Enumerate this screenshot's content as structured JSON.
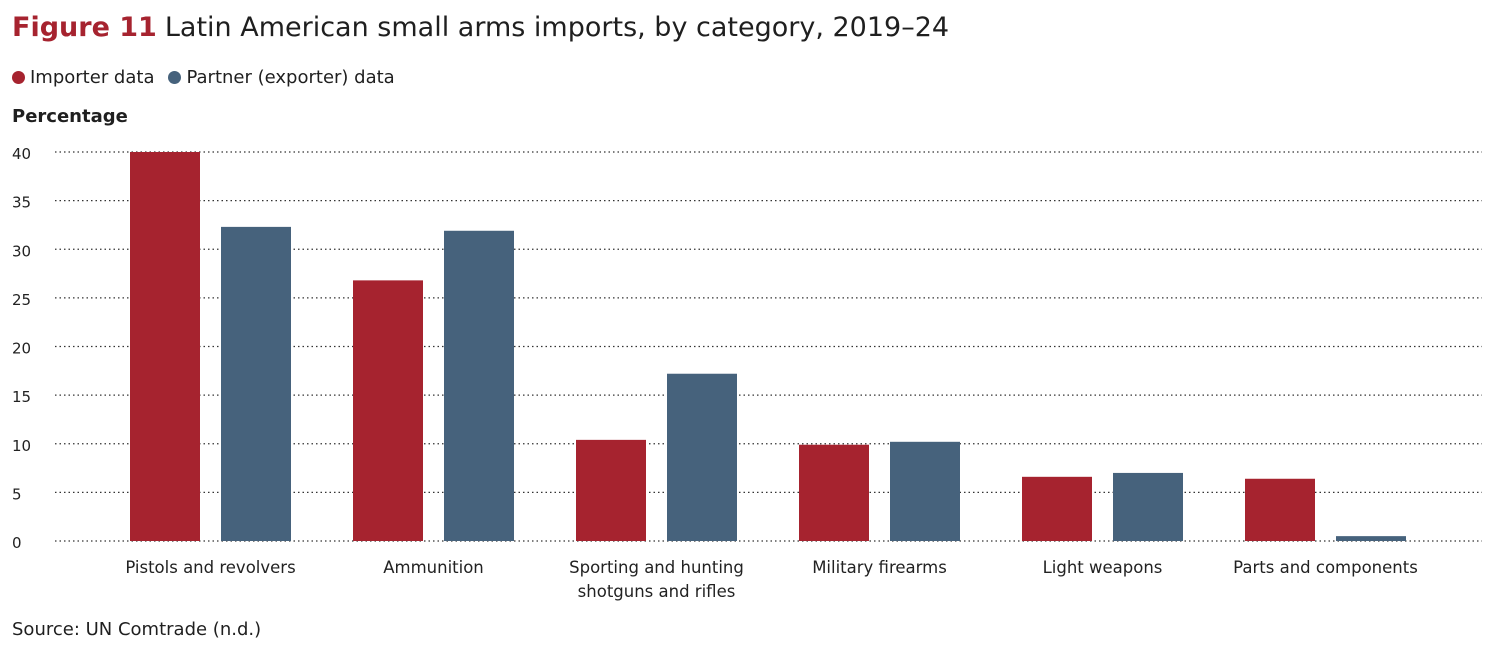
{
  "header": {
    "figure_label": "Figure 11",
    "title_text": "Latin American small arms imports, by category, 2019–24"
  },
  "source": "Source: UN Comtrade (n.d.)",
  "chart_data": {
    "type": "bar",
    "ylabel": "Percentage",
    "ylim": [
      0,
      40
    ],
    "yticks": [
      0,
      5,
      10,
      15,
      20,
      25,
      30,
      35,
      40
    ],
    "grid": true,
    "legend_position": "top-left",
    "categories": [
      [
        "Pistols and revolvers"
      ],
      [
        "Ammunition"
      ],
      [
        "Sporting and hunting",
        "shotguns and rifles"
      ],
      [
        "Military firearms"
      ],
      [
        "Light weapons"
      ],
      [
        "Parts and components"
      ]
    ],
    "series": [
      {
        "name": "Importer data",
        "color": "#a6232f",
        "values": [
          40.0,
          26.8,
          10.4,
          9.9,
          6.6,
          6.4
        ]
      },
      {
        "name": "Partner (exporter) data",
        "color": "#46627c",
        "values": [
          32.3,
          31.9,
          17.2,
          10.2,
          7.0,
          0.5
        ]
      }
    ]
  }
}
